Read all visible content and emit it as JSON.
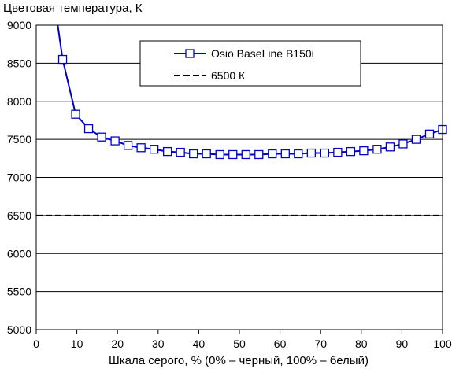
{
  "chart_data": {
    "type": "line",
    "title": "",
    "ylabel": "Цветовая температура, К",
    "xlabel": "Шкала серого, % (0% – черный, 100% – белый)",
    "xlim": [
      0,
      100
    ],
    "ylim": [
      5000,
      9000
    ],
    "x_ticks": [
      "0",
      "10",
      "20",
      "30",
      "40",
      "50",
      "60",
      "70",
      "80",
      "90",
      "100"
    ],
    "y_ticks": [
      "5000",
      "5500",
      "6000",
      "6500",
      "7000",
      "7500",
      "8000",
      "8500",
      "9000"
    ],
    "grid": "horizontal",
    "legend_position": "top-center",
    "series": [
      {
        "name": "Osio BaseLine B150i",
        "color": "#0000cc",
        "marker": "square",
        "x": [
          6.5,
          9.7,
          12.9,
          16.1,
          19.4,
          22.6,
          25.8,
          29.0,
          32.3,
          35.5,
          38.7,
          41.9,
          45.2,
          48.4,
          51.6,
          54.8,
          58.1,
          61.3,
          64.5,
          67.7,
          71.0,
          74.2,
          77.4,
          80.6,
          83.9,
          87.1,
          90.3,
          93.5,
          96.8,
          100.0
        ],
        "y": [
          8550,
          7830,
          7640,
          7530,
          7480,
          7420,
          7390,
          7370,
          7340,
          7330,
          7310,
          7310,
          7300,
          7300,
          7300,
          7300,
          7310,
          7310,
          7310,
          7320,
          7320,
          7330,
          7340,
          7350,
          7370,
          7400,
          7440,
          7500,
          7570,
          7630
        ]
      },
      {
        "name": "6500 К",
        "color": "#000000",
        "style": "dashed",
        "x": [
          0,
          100
        ],
        "y": [
          6500,
          6500
        ]
      }
    ],
    "curve_start": {
      "x": 5.3,
      "y": 9000
    }
  }
}
